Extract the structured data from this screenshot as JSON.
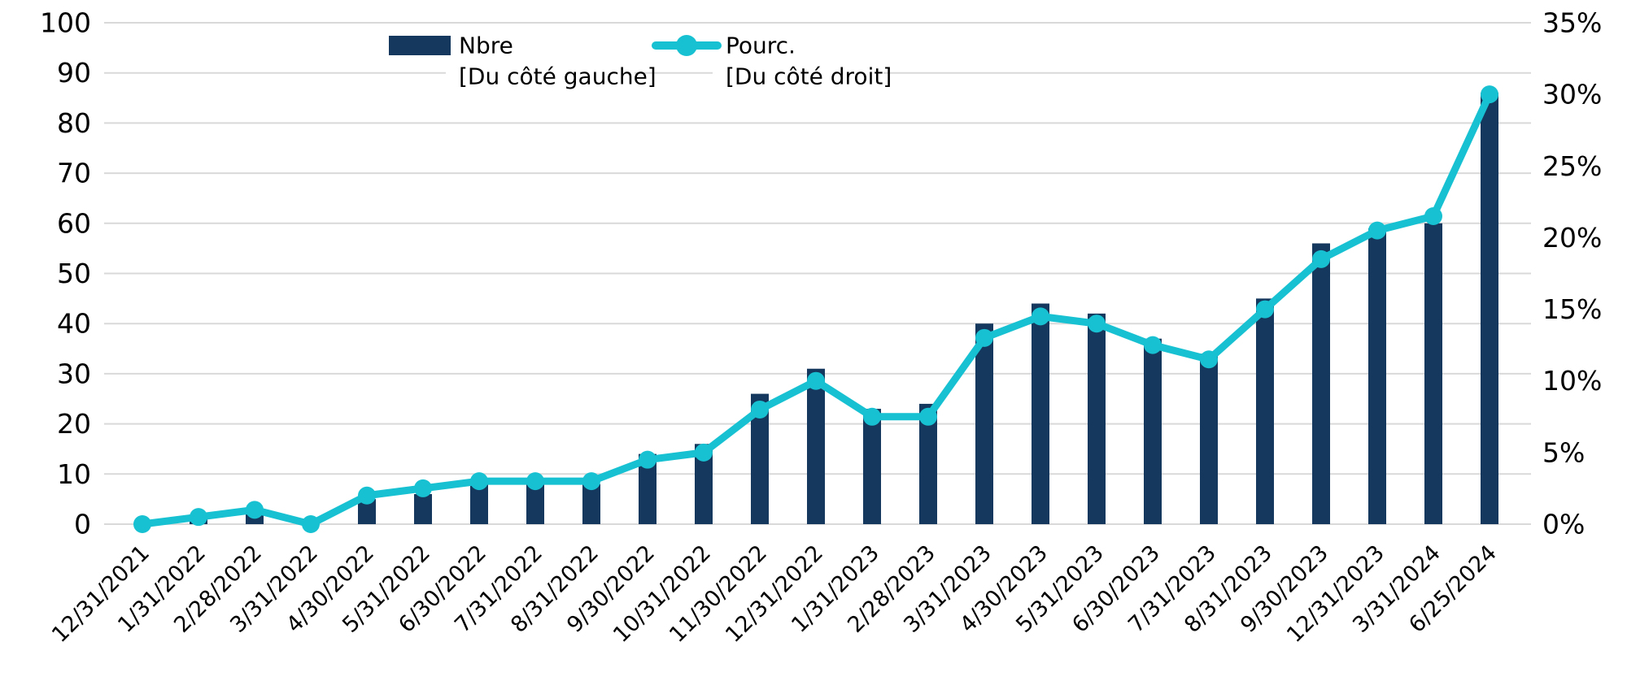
{
  "chart_data": {
    "type": "bar",
    "subtype": "combo-bar-line",
    "title": "",
    "categories": [
      "12/31/2021",
      "1/31/2022",
      "2/28/2022",
      "3/31/2022",
      "4/30/2022",
      "5/31/2022",
      "6/30/2022",
      "7/31/2022",
      "8/31/2022",
      "9/30/2022",
      "10/31/2022",
      "11/30/2022",
      "12/31/2022",
      "1/31/2023",
      "2/28/2023",
      "3/31/2023",
      "4/30/2023",
      "5/31/2023",
      "6/30/2023",
      "7/31/2023",
      "8/31/2023",
      "9/30/2023",
      "12/31/2023",
      "3/31/2024",
      "6/25/2024"
    ],
    "series": [
      {
        "name": "Nbre",
        "legend_sublabel": "[Du côté gauche]",
        "type": "bar",
        "axis": "left",
        "color": "#15395E",
        "values": [
          0,
          1,
          2,
          0,
          5,
          6,
          9,
          8,
          8,
          14,
          16,
          26,
          31,
          23,
          24,
          40,
          44,
          42,
          37,
          34,
          45,
          56,
          59,
          60,
          86
        ]
      },
      {
        "name": "Pourc.",
        "legend_sublabel": "[Du côté droit]",
        "type": "line",
        "axis": "right",
        "color": "#17C1D1",
        "values_percent": [
          0,
          0.5,
          1,
          0,
          2,
          2.5,
          3,
          3,
          3,
          4.5,
          5,
          8,
          10,
          7.5,
          7.5,
          13,
          14.5,
          14,
          12.5,
          11.5,
          15,
          18.5,
          20.5,
          21.5,
          30
        ]
      }
    ],
    "left_axis": {
      "min": 0,
      "max": 100,
      "step": 10,
      "ticks": [
        0,
        10,
        20,
        30,
        40,
        50,
        60,
        70,
        80,
        90,
        100
      ]
    },
    "right_axis": {
      "min": 0,
      "max": 35,
      "step": 5,
      "ticks": [
        0,
        5,
        10,
        15,
        20,
        25,
        30,
        35
      ],
      "suffix": "%"
    },
    "grid": true,
    "legend_position": "top-center",
    "background": "#FFFFFF",
    "gridline_color": "#D9D9D9",
    "text_color": "#000000"
  }
}
